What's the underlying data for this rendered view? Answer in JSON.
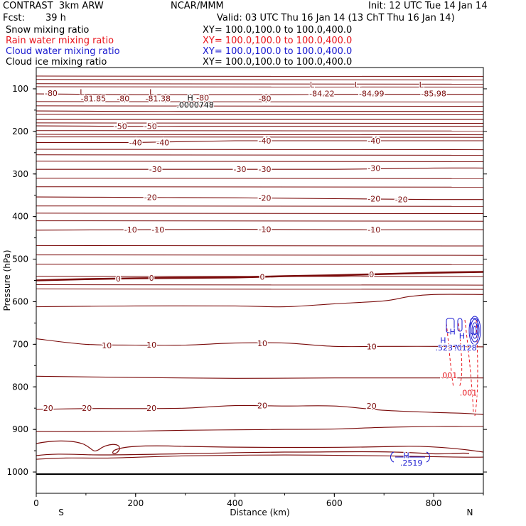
{
  "header": {
    "title_left": "CONTRAST  3km ARW",
    "title_center": "NCAR/MMM",
    "init": "Init: 12 UTC Tue 14 Jan 14",
    "fcst_label": "Fcst:",
    "fcst_value": "39 h",
    "valid": "Valid: 03 UTC Thu 16 Jan 14 (13 ChT Thu 16 Jan 14)"
  },
  "legend": [
    {
      "label": "Snow mixing ratio",
      "xy": "XY= 100.0,100.0 to 100.0,400.0",
      "color": "#000000"
    },
    {
      "label": "Rain water mixing ratio",
      "xy": "XY= 100.0,100.0 to 100.0,400.0",
      "color": "#e8141c"
    },
    {
      "label": "Cloud water mixing ratio",
      "xy": "XY= 100.0,100.0 to 100.0,400.0",
      "color": "#1a1ad0"
    },
    {
      "label": "Cloud ice mixing ratio",
      "xy": "XY= 100.0,100.0 to 100.0,400.0",
      "color": "#000000"
    }
  ],
  "colors": {
    "temperature": "#7a0a0a",
    "rain": "#e8141c",
    "cloud_water": "#1a1ad0",
    "axis": "#000000"
  },
  "chart_data": {
    "type": "contour",
    "xlabel": "Distance (km)",
    "ylabel": "Pressure (hPa)",
    "xlim": [
      0,
      900
    ],
    "ylim": [
      1050,
      50
    ],
    "x_ticks": [
      "0",
      "200",
      "400",
      "600",
      "800"
    ],
    "y_ticks": [
      "100",
      "200",
      "300",
      "400",
      "500",
      "600",
      "700",
      "800",
      "900",
      "1000"
    ],
    "end_labels": {
      "left": "S",
      "right": "N"
    },
    "temperature_labels": [
      {
        "text": "-80",
        "x": 30,
        "p": 110
      },
      {
        "text": "-81.85",
        "x": 115,
        "p": 123
      },
      {
        "text": "-80",
        "x": 175,
        "p": 123
      },
      {
        "text": "-81.38",
        "x": 245,
        "p": 123
      },
      {
        "text": "-80",
        "x": 335,
        "p": 121
      },
      {
        "text": "-80",
        "x": 460,
        "p": 123
      },
      {
        "text": "-84.22",
        "x": 575,
        "p": 111
      },
      {
        "text": "-84.99",
        "x": 675,
        "p": 111
      },
      {
        "text": "-85.98",
        "x": 800,
        "p": 111
      },
      {
        "text": "-50",
        "x": 170,
        "p": 188
      },
      {
        "text": "-50",
        "x": 230,
        "p": 188
      },
      {
        "text": "-40",
        "x": 200,
        "p": 226
      },
      {
        "text": "-40",
        "x": 255,
        "p": 226
      },
      {
        "text": "-40",
        "x": 460,
        "p": 222
      },
      {
        "text": "-40",
        "x": 680,
        "p": 222
      },
      {
        "text": "-30",
        "x": 240,
        "p": 289
      },
      {
        "text": "-30",
        "x": 410,
        "p": 289
      },
      {
        "text": "-30",
        "x": 460,
        "p": 289
      },
      {
        "text": "-30",
        "x": 680,
        "p": 286
      },
      {
        "text": "-20",
        "x": 230,
        "p": 355
      },
      {
        "text": "-20",
        "x": 460,
        "p": 356
      },
      {
        "text": "-20",
        "x": 680,
        "p": 358
      },
      {
        "text": "-20",
        "x": 735,
        "p": 360
      },
      {
        "text": "-10",
        "x": 190,
        "p": 431
      },
      {
        "text": "-10",
        "x": 245,
        "p": 431
      },
      {
        "text": "-10",
        "x": 460,
        "p": 430
      },
      {
        "text": "-10",
        "x": 680,
        "p": 431
      },
      {
        "text": "0",
        "x": 165,
        "p": 546
      },
      {
        "text": "0",
        "x": 232,
        "p": 544
      },
      {
        "text": "0",
        "x": 455,
        "p": 542
      },
      {
        "text": "0",
        "x": 675,
        "p": 536
      },
      {
        "text": "10",
        "x": 142,
        "p": 703
      },
      {
        "text": "10",
        "x": 232,
        "p": 701
      },
      {
        "text": "10",
        "x": 455,
        "p": 698
      },
      {
        "text": "10",
        "x": 675,
        "p": 705
      },
      {
        "text": "20",
        "x": 24,
        "p": 850
      },
      {
        "text": "20",
        "x": 102,
        "p": 850
      },
      {
        "text": "20",
        "x": 232,
        "p": 850
      },
      {
        "text": "20",
        "x": 455,
        "p": 844
      },
      {
        "text": "20",
        "x": 675,
        "p": 845
      }
    ],
    "extrema_labels": [
      {
        "text": "L",
        "x": 92,
        "p": 108,
        "color": "temperature"
      },
      {
        "text": "L",
        "x": 232,
        "p": 108,
        "color": "temperature"
      },
      {
        "text": "H",
        "x": 310,
        "p": 121,
        "color": "axis"
      },
      {
        "text": ".0000748",
        "x": 320,
        "p": 138,
        "color": "axis"
      },
      {
        "text": "L",
        "x": 555,
        "p": 90,
        "color": "temperature"
      },
      {
        "text": "L",
        "x": 645,
        "p": 90,
        "color": "temperature"
      },
      {
        "text": "L",
        "x": 775,
        "p": 90,
        "color": "temperature"
      },
      {
        "text": "H",
        "x": 819,
        "p": 690,
        "color": "cloud_water"
      },
      {
        "text": ".5237",
        "x": 826,
        "p": 708,
        "color": "cloud_water"
      },
      {
        "text": ".0128",
        "x": 864,
        "p": 708,
        "color": "cloud_water"
      },
      {
        "text": "H",
        "x": 838,
        "p": 670,
        "color": "cloud_water"
      },
      {
        "text": "H",
        "x": 857,
        "p": 680,
        "color": "cloud_water"
      },
      {
        "text": ".001",
        "x": 830,
        "p": 773,
        "color": "rain"
      },
      {
        "text": ".001",
        "x": 870,
        "p": 814,
        "color": "rain"
      },
      {
        "text": "H",
        "x": 745,
        "p": 961,
        "color": "cloud_water"
      },
      {
        "text": ".2519",
        "x": 755,
        "p": 978,
        "color": "cloud_water"
      }
    ],
    "temperature_isotherms": [
      {
        "name": "-80",
        "x": [
          0,
          100,
          200,
          300,
          400,
          500,
          600,
          700,
          800,
          900
        ],
        "p": [
          112,
          113,
          114,
          114,
          114,
          114,
          113,
          113,
          113,
          113
        ]
      },
      {
        "name": "-70",
        "x": [
          0,
          200,
          400,
          600,
          800,
          900
        ],
        "p": [
          152,
          153,
          153,
          153,
          153,
          153
        ]
      },
      {
        "name": "-60",
        "x": [
          0,
          200,
          400,
          600,
          800,
          900
        ],
        "p": [
          172,
          172,
          172,
          172,
          172,
          172
        ]
      },
      {
        "name": "-50",
        "x": [
          0,
          200,
          400,
          600,
          800,
          900
        ],
        "p": [
          187,
          188,
          188,
          188,
          188,
          188
        ]
      },
      {
        "name": "-40",
        "x": [
          0,
          200,
          400,
          600,
          800,
          900
        ],
        "p": [
          226,
          226,
          222,
          222,
          222,
          222
        ]
      },
      {
        "name": "-30",
        "x": [
          0,
          200,
          400,
          600,
          800,
          900
        ],
        "p": [
          289,
          289,
          289,
          289,
          286,
          286
        ]
      },
      {
        "name": "-20",
        "x": [
          0,
          200,
          400,
          600,
          800,
          900
        ],
        "p": [
          354,
          355,
          356,
          358,
          360,
          360
        ]
      },
      {
        "name": "-10",
        "x": [
          0,
          200,
          400,
          600,
          800,
          900
        ],
        "p": [
          432,
          431,
          430,
          431,
          431,
          431
        ]
      },
      {
        "name": "0",
        "x": [
          0,
          100,
          200,
          300,
          400,
          500,
          600,
          700,
          800,
          900
        ],
        "p": [
          550,
          547,
          545,
          544,
          543,
          540,
          538,
          535,
          532,
          530
        ]
      },
      {
        "name": "5",
        "x": [
          0,
          200,
          400,
          500,
          600,
          700,
          750,
          800,
          900
        ],
        "p": [
          612,
          610,
          610,
          612,
          605,
          598,
          588,
          583,
          583
        ]
      },
      {
        "name": "10",
        "x": [
          0,
          100,
          200,
          300,
          400,
          500,
          600,
          700,
          800,
          900
        ],
        "p": [
          687,
          700,
          702,
          702,
          697,
          697,
          705,
          705,
          705,
          706
        ]
      },
      {
        "name": "15",
        "x": [
          0,
          200,
          400,
          600,
          700,
          800,
          900
        ],
        "p": [
          775,
          778,
          780,
          779,
          779,
          779,
          779
        ]
      },
      {
        "name": "20",
        "x": [
          0,
          100,
          200,
          300,
          400,
          500,
          600,
          700,
          800,
          860,
          900
        ],
        "p": [
          853,
          851,
          851,
          850,
          844,
          845,
          845,
          855,
          860,
          862,
          865
        ]
      },
      {
        "name": "25",
        "x": [
          0,
          100,
          200,
          300,
          400,
          500,
          600,
          700,
          800,
          860,
          900
        ],
        "p": [
          905,
          905,
          904,
          902,
          901,
          900,
          899,
          895,
          893,
          893,
          893
        ]
      },
      {
        "name": "30",
        "x": [
          0,
          60,
          150,
          300,
          500,
          700,
          850,
          900
        ],
        "p": [
          970,
          967,
          967,
          962,
          960,
          962,
          965,
          965
        ]
      }
    ],
    "fine_layers_hpa": [
      70,
      78,
      88,
      95,
      130,
      140,
      160,
      180,
      198,
      207,
      213,
      242,
      255,
      270,
      310,
      330,
      375,
      392,
      410,
      468,
      490,
      512,
      540,
      560,
      570
    ]
  }
}
